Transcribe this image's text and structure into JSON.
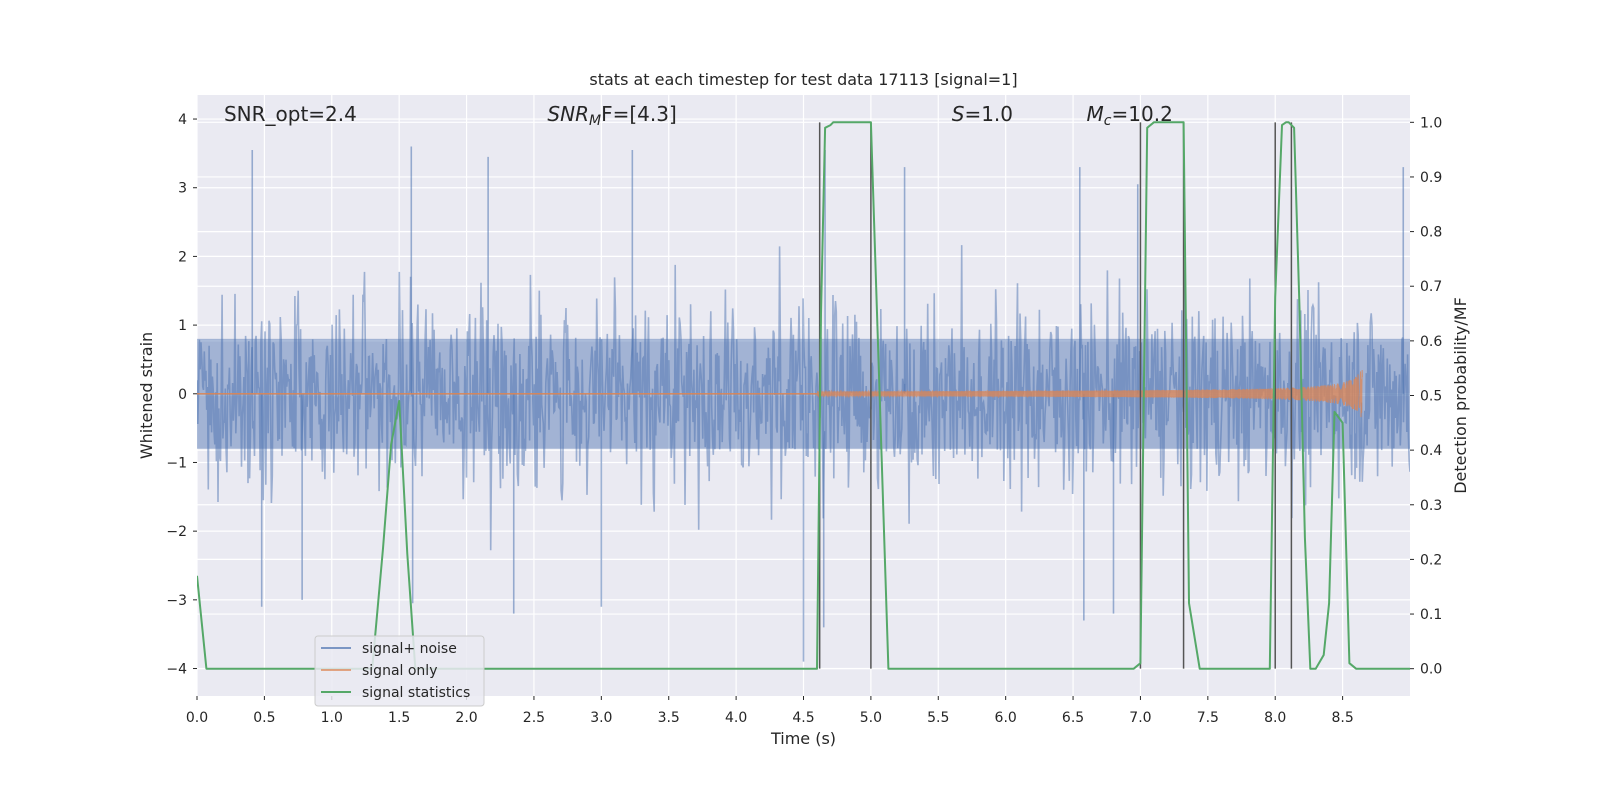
{
  "chart_data": {
    "type": "line",
    "title": "stats at each timestep for test data 17113 [signal=1]",
    "xlabel": "Time (s)",
    "ylabel_left": "Whitened strain",
    "ylabel_right": "Detection probability/MF",
    "xlim": [
      0.0,
      9.0
    ],
    "ylim_left": [
      -4.4,
      4.35
    ],
    "ylim_right": [
      -0.05,
      1.05
    ],
    "x_ticks": [
      "0.0",
      "0.5",
      "1.0",
      "1.5",
      "2.0",
      "2.5",
      "3.0",
      "3.5",
      "4.0",
      "4.5",
      "5.0",
      "5.5",
      "6.0",
      "6.5",
      "7.0",
      "7.5",
      "8.0",
      "8.5"
    ],
    "y_ticks_left": [
      "−4",
      "−3",
      "−2",
      "−1",
      "0",
      "1",
      "2",
      "3",
      "4"
    ],
    "y_ticks_right": [
      "0.0",
      "0.1",
      "0.2",
      "0.3",
      "0.4",
      "0.5",
      "0.6",
      "0.7",
      "0.8",
      "0.9",
      "1.0"
    ],
    "grid": true,
    "legend_position": "lower-left",
    "annotations": [
      {
        "x": 0.2,
        "text": "SNR_opt=2.4"
      },
      {
        "x": 2.6,
        "text": "SNR",
        "sub": "M",
        "suffix": "F=[4.3]",
        "italic": true
      },
      {
        "x": 5.6,
        "text": "S",
        "suffix": "=1.0",
        "italic": true
      },
      {
        "x": 6.6,
        "text": "M",
        "sub": "c",
        "suffix": "=10.2",
        "italic": true
      }
    ],
    "series": [
      {
        "name": "signal+ noise",
        "color": "#4c72b0",
        "kind": "noise",
        "typical_range": [
          -2.5,
          2.5
        ],
        "extremes": [
          {
            "x": 0.41,
            "y": 3.55
          },
          {
            "x": 1.59,
            "y": 3.6
          },
          {
            "x": 2.16,
            "y": 3.45
          },
          {
            "x": 3.23,
            "y": 3.55
          },
          {
            "x": 4.66,
            "y": 3.55
          },
          {
            "x": 5.25,
            "y": 3.3
          },
          {
            "x": 6.55,
            "y": 3.3
          },
          {
            "x": 6.98,
            "y": 3.05
          },
          {
            "x": 8.95,
            "y": 3.3
          },
          {
            "x": 4.5,
            "y": -3.9
          },
          {
            "x": 4.65,
            "y": -3.4
          },
          {
            "x": 2.35,
            "y": -3.2
          },
          {
            "x": 0.48,
            "y": -3.1
          },
          {
            "x": 3.0,
            "y": -3.1
          },
          {
            "x": 6.58,
            "y": -3.3
          },
          {
            "x": 1.6,
            "y": -3.05
          },
          {
            "x": 0.78,
            "y": -3.0
          },
          {
            "x": 6.8,
            "y": -3.2
          }
        ]
      },
      {
        "name": "signal only",
        "color": "#dd8452",
        "kind": "chirp",
        "start": 4.6,
        "peak_time": 8.65,
        "peak_amplitude": 0.4
      },
      {
        "name": "signal statistics",
        "color": "#55a868",
        "axis": "right",
        "x": [
          0.0,
          0.07,
          0.15,
          0.7,
          1.3,
          1.38,
          1.44,
          1.5,
          1.56,
          1.62,
          4.6,
          4.63,
          4.66,
          4.7,
          4.72,
          5.0,
          5.13,
          6.95,
          7.0,
          7.05,
          7.1,
          7.32,
          7.36,
          7.44,
          7.96,
          8.0,
          8.05,
          8.08,
          8.1,
          8.14,
          8.18,
          8.22,
          8.26,
          8.3,
          8.36,
          8.4,
          8.44,
          8.5,
          8.55,
          8.6,
          8.66,
          9.0
        ],
        "y": [
          0.17,
          0.0,
          0.0,
          0.0,
          0.0,
          0.22,
          0.41,
          0.49,
          0.21,
          0.0,
          0.0,
          0.65,
          0.99,
          0.995,
          1.0,
          1.0,
          0.0,
          0.0,
          0.01,
          0.99,
          1.0,
          1.0,
          0.12,
          0.0,
          0.0,
          0.68,
          0.995,
          1.0,
          1.0,
          0.99,
          0.66,
          0.24,
          0.0,
          0.0,
          0.025,
          0.12,
          0.47,
          0.45,
          0.01,
          0.0,
          0.0,
          0.0
        ]
      }
    ],
    "vertical_markers": [
      4.62,
      5.0,
      7.0,
      7.32,
      8.0,
      8.12
    ]
  }
}
